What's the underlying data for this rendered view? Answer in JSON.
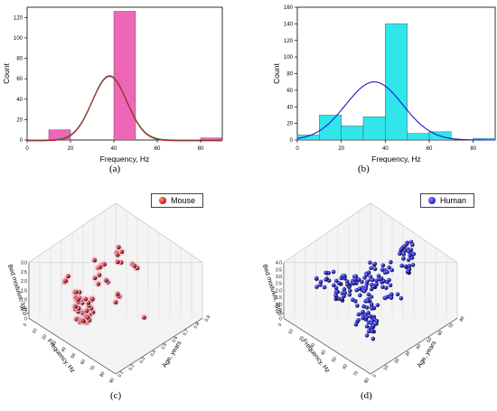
{
  "chart_data": [
    {
      "panel": "(a)",
      "type": "bar",
      "subtype": "histogram-with-normal-fit",
      "xlabel": "Frequency, Hz",
      "ylabel": "Count",
      "xlim": [
        0,
        90
      ],
      "ylim": [
        0,
        130
      ],
      "xticks": [
        "0",
        "20",
        "40",
        "60",
        "80"
      ],
      "yticks": [
        "0",
        "20",
        "40",
        "60",
        "80",
        "100",
        "120"
      ],
      "bins": [
        {
          "x0": 10,
          "x1": 20,
          "count": 10
        },
        {
          "x0": 20,
          "x1": 30,
          "count": 0
        },
        {
          "x0": 30,
          "x1": 40,
          "count": 0
        },
        {
          "x0": 40,
          "x1": 50,
          "count": 126
        },
        {
          "x0": 80,
          "x1": 90,
          "count": 2
        }
      ],
      "fit": {
        "mean": 38,
        "sd": 8,
        "peak": 63
      },
      "bar_color": "#ee5fb3",
      "fit_colors": [
        "#2a8a2a",
        "#b01f3a"
      ]
    },
    {
      "panel": "(b)",
      "type": "bar",
      "subtype": "histogram-with-normal-fit",
      "xlabel": "Frequency, Hz",
      "ylabel": "Count",
      "xlim": [
        0,
        90
      ],
      "ylim": [
        0,
        160
      ],
      "xticks": [
        "0",
        "20",
        "40",
        "60",
        "80"
      ],
      "yticks": [
        "0",
        "20",
        "40",
        "60",
        "80",
        "100",
        "120",
        "140",
        "160"
      ],
      "bins": [
        {
          "x0": 0,
          "x1": 10,
          "count": 6
        },
        {
          "x0": 10,
          "x1": 20,
          "count": 30
        },
        {
          "x0": 20,
          "x1": 30,
          "count": 17
        },
        {
          "x0": 30,
          "x1": 40,
          "count": 28
        },
        {
          "x0": 40,
          "x1": 50,
          "count": 140
        },
        {
          "x0": 50,
          "x1": 60,
          "count": 8
        },
        {
          "x0": 60,
          "x1": 70,
          "count": 10
        },
        {
          "x0": 70,
          "x1": 80,
          "count": 0
        },
        {
          "x0": 80,
          "x1": 90,
          "count": 2
        }
      ],
      "fit": {
        "mean": 35,
        "sd": 13,
        "peak": 70
      },
      "bar_color": "#25e5ea",
      "fit_colors": [
        "#1a1acc"
      ]
    },
    {
      "panel": "(c)",
      "type": "scatter",
      "subtype": "3d-scatter",
      "legend": [
        "Mouse"
      ],
      "axes": {
        "x": {
          "label": "Frequency, Hz",
          "ticks": [
            "0",
            "10",
            "20",
            "30",
            "40",
            "50",
            "60",
            "70",
            "80",
            "90"
          ]
        },
        "y": {
          "label": "Age, years",
          "ticks": [
            "0.1",
            "0.2",
            "0.3",
            "0.4",
            "0.5",
            "0.6",
            "0.7",
            "0.8",
            "0.9"
          ]
        },
        "z": {
          "label": "Bed modulus, lg(η)",
          "ticks": [
            "0",
            "0.5",
            "1.0",
            "1.5",
            "2.0",
            "2.5",
            "3.0"
          ]
        }
      },
      "marker_color": "#c0282b"
    },
    {
      "panel": "(d)",
      "type": "scatter",
      "subtype": "3d-scatter",
      "legend": [
        "Human"
      ],
      "axes": {
        "x": {
          "label": "Frequency, Hz",
          "ticks": [
            "0",
            "10",
            "20",
            "30",
            "40",
            "50",
            "60",
            "70",
            "80"
          ]
        },
        "y": {
          "label": "Age, years",
          "ticks": [
            "0",
            "10",
            "20",
            "30",
            "40",
            "50",
            "60",
            "70",
            "80"
          ]
        },
        "z": {
          "label": "Bed modulus, lg(η)",
          "ticks": [
            "0",
            "0.5",
            "1.0",
            "1.5",
            "2.0",
            "2.5",
            "3.0",
            "3.5",
            "4.0"
          ]
        }
      },
      "marker_color": "#2a2ad6"
    }
  ]
}
